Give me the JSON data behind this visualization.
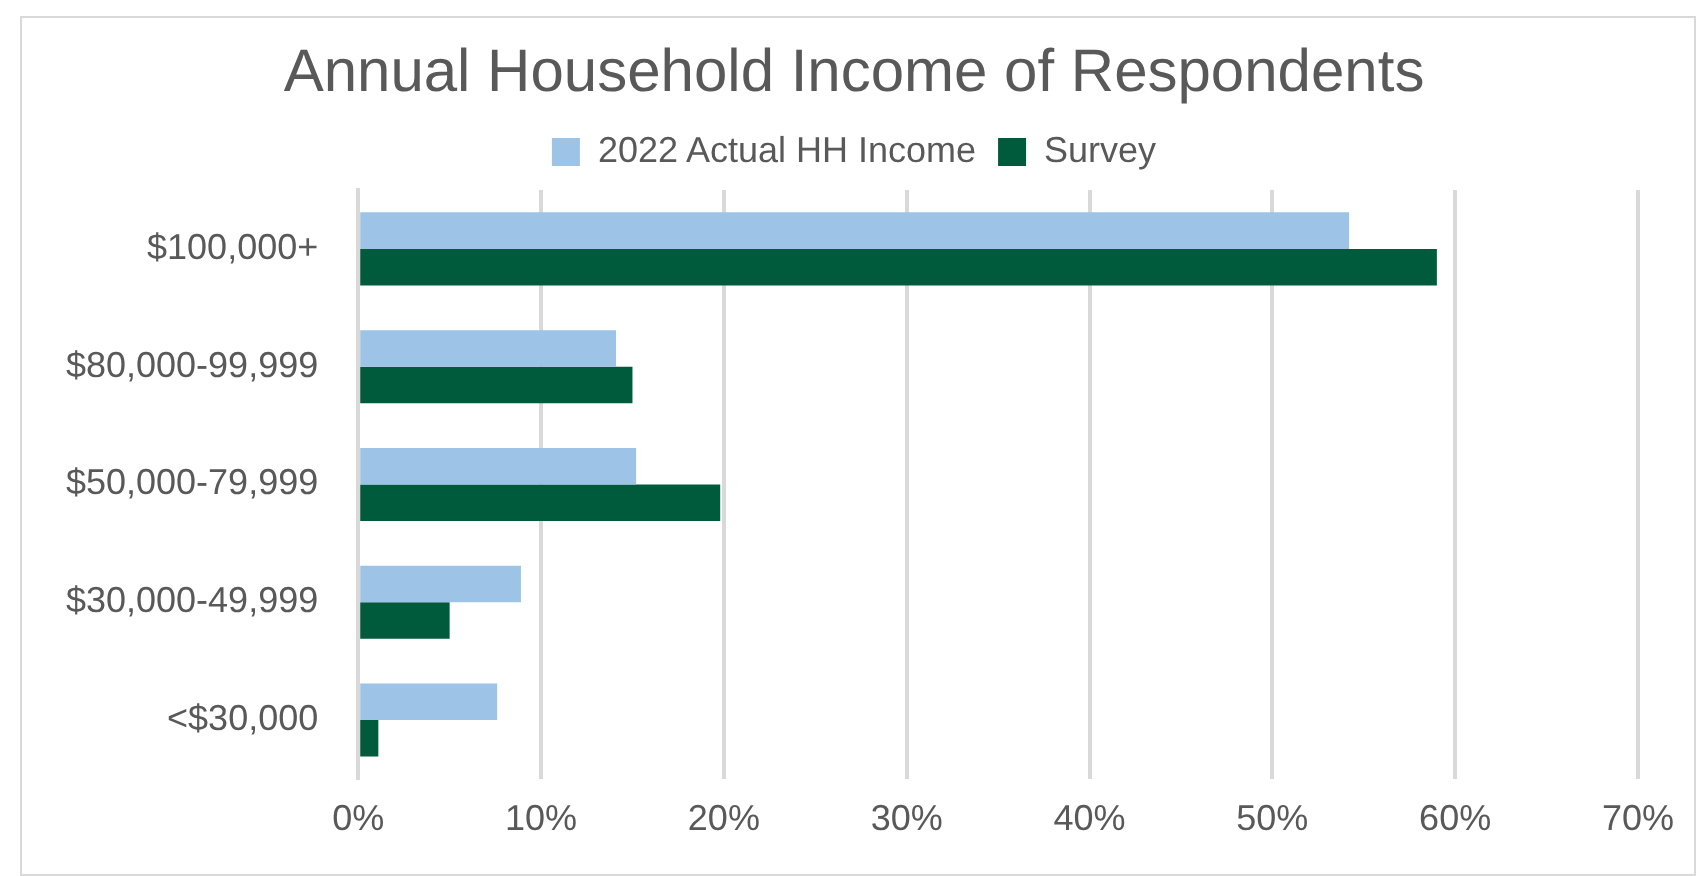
{
  "chart_data": {
    "type": "bar",
    "orientation": "horizontal",
    "title": "Annual Household Income of Respondents",
    "categories": [
      "$100,000+",
      "$80,000-99,999",
      "$50,000-79,999",
      "$30,000-49,999",
      "<$30,000"
    ],
    "series": [
      {
        "name": "2022 Actual HH Income",
        "color": "#9dc3e6",
        "values": [
          54.2,
          14.1,
          15.2,
          8.9,
          7.6
        ]
      },
      {
        "name": "Survey",
        "color": "#005a3c",
        "values": [
          59.0,
          15.0,
          19.8,
          5.0,
          1.1
        ]
      }
    ],
    "xlim": [
      0,
      70
    ],
    "xticks": [
      {
        "value": 0,
        "label": "0%"
      },
      {
        "value": 10,
        "label": "10%"
      },
      {
        "value": 20,
        "label": "20%"
      },
      {
        "value": 30,
        "label": "30%"
      },
      {
        "value": 40,
        "label": "40%"
      },
      {
        "value": 50,
        "label": "50%"
      },
      {
        "value": 60,
        "label": "60%"
      },
      {
        "value": 70,
        "label": "70%"
      }
    ],
    "grid": "x",
    "legend": "top"
  }
}
